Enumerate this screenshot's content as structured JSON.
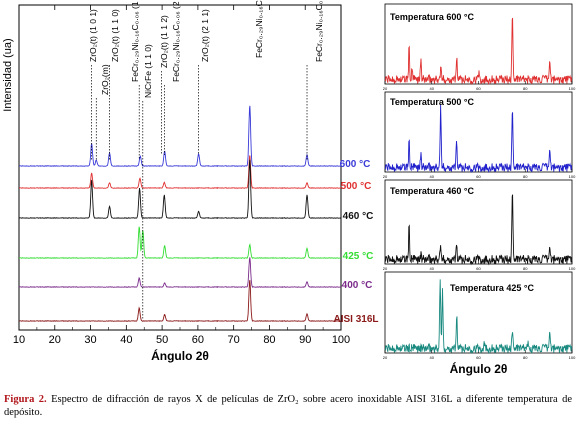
{
  "caption": {
    "label": "Figura 2.",
    "text": "Espectro de difracción de rayos X de películas de ZrO₂ sobre acero inoxidable AISI 316L a diferente temperatura de depósito."
  },
  "chart_data": [
    {
      "id": "main",
      "type": "line",
      "xlabel": "Ángulo 2θ",
      "ylabel": "Intensidad (ua)",
      "xlim": [
        10,
        100
      ],
      "xticks": [
        10,
        20,
        30,
        40,
        50,
        60,
        70,
        80,
        90,
        100
      ],
      "grid": false,
      "series": [
        {
          "name": "600 °C",
          "color": "#3a3ad8",
          "peaks": [
            [
              30.3,
              4.5
            ],
            [
              31.6,
              1.2
            ],
            [
              35.3,
              2.6
            ],
            [
              43.9,
              2.0
            ],
            [
              50.7,
              3.0
            ],
            [
              60.2,
              2.4
            ],
            [
              74.5,
              12.2
            ],
            [
              90.5,
              2.2
            ]
          ]
        },
        {
          "name": "500 °C",
          "color": "#e03030",
          "peaks": [
            [
              30.3,
              3.0
            ],
            [
              35.3,
              1.0
            ],
            [
              43.8,
              2.0
            ],
            [
              50.6,
              1.1
            ],
            [
              74.5,
              6.6
            ],
            [
              90.5,
              1.0
            ]
          ]
        },
        {
          "name": "460 °C",
          "color": "#111111",
          "peaks": [
            [
              30.3,
              7.6
            ],
            [
              35.3,
              2.3
            ],
            [
              43.7,
              6.0
            ],
            [
              50.6,
              4.6
            ],
            [
              60.2,
              1.3
            ],
            [
              74.5,
              11.8
            ],
            [
              90.5,
              4.6
            ]
          ]
        },
        {
          "name": "425 °C",
          "color": "#33dd33",
          "peaks": [
            [
              43.6,
              6.3
            ],
            [
              44.6,
              5.6
            ],
            [
              50.7,
              2.5
            ],
            [
              74.5,
              2.7
            ],
            [
              90.5,
              1.9
            ]
          ]
        },
        {
          "name": "400 °C",
          "color": "#7a2b8a",
          "peaks": [
            [
              43.6,
              1.8
            ],
            [
              50.7,
              0.8
            ],
            [
              74.5,
              6.0
            ],
            [
              90.5,
              1.0
            ]
          ]
        },
        {
          "name": "AISI 316L",
          "color": "#8b1a1a",
          "peaks": [
            [
              43.6,
              2.6
            ],
            [
              50.7,
              1.3
            ],
            [
              74.5,
              8.3
            ],
            [
              90.5,
              1.4
            ]
          ]
        }
      ],
      "annotations": [
        {
          "text": "ZrO₂(t) (1 0 1)",
          "x": 30.3
        },
        {
          "text": "ZrO₂(m)",
          "x": 31.6
        },
        {
          "text": "ZrO₂(t) (1 1 0)",
          "x": 35.3
        },
        {
          "text": "FeCr₀.₂₉Ni₀.₁₆C₀.₀₆ (1 1 1)",
          "x": 43.6
        },
        {
          "text": "NiCrFe (1 1 0)",
          "x": 44.6
        },
        {
          "text": "ZrO₂(t) (1 1 2)",
          "x": 49.8
        },
        {
          "text": "FeCr₀.₂₉Ni₀.₁₆C₀.₀₆ (2 0 0)",
          "x": 50.7
        },
        {
          "text": "ZrO₂(t) (2 1 1)",
          "x": 60.2
        },
        {
          "text": "FeCr₀.₂₉Ni₀.₁₆C₀.₀₆ (2 2 0)",
          "x": 74.5
        },
        {
          "text": "FeCr₀.₂₉Ni₀.₁₆C₀.₀₆ (3 1 1)",
          "x": 90.5
        }
      ]
    },
    {
      "id": "inset-600",
      "type": "line",
      "title": "Temperatura 600 °C",
      "color": "#e03030",
      "xlim": [
        20,
        100
      ],
      "xticks": [
        20,
        40,
        60,
        80,
        100
      ],
      "peaks": [
        [
          30.3,
          0.45
        ],
        [
          31.6,
          0.14
        ],
        [
          35.3,
          0.27
        ],
        [
          43.9,
          0.16
        ],
        [
          50.7,
          0.3
        ],
        [
          60.2,
          0.11
        ],
        [
          74.5,
          1.0
        ],
        [
          90.5,
          0.27
        ]
      ]
    },
    {
      "id": "inset-500",
      "type": "line",
      "title": "Temperatura 500 °C",
      "color": "#2222cc",
      "xlim": [
        20,
        100
      ],
      "xticks": [
        20,
        40,
        60,
        80,
        100
      ],
      "peaks": [
        [
          30.3,
          0.36
        ],
        [
          35.3,
          0.18
        ],
        [
          43.8,
          0.86
        ],
        [
          50.6,
          0.38
        ],
        [
          74.5,
          0.9
        ],
        [
          90.5,
          0.26
        ]
      ]
    },
    {
      "id": "inset-460",
      "type": "line",
      "title": "Temperatura 460 °C",
      "color": "#111111",
      "xlim": [
        20,
        100
      ],
      "xticks": [
        20,
        40,
        60,
        80,
        100
      ],
      "peaks": [
        [
          30.3,
          0.44
        ],
        [
          35.3,
          0.06
        ],
        [
          43.7,
          0.18
        ],
        [
          50.6,
          0.2
        ],
        [
          60.2,
          0.03
        ],
        [
          74.5,
          1.0
        ],
        [
          90.5,
          0.17
        ]
      ]
    },
    {
      "id": "inset-425",
      "type": "line",
      "title": "Temperatura 425 °C",
      "color": "#1a8a80",
      "xlabel": "Ángulo 2θ",
      "xlim": [
        20,
        100
      ],
      "xticks": [
        20,
        40,
        60,
        80,
        100
      ],
      "peaks": [
        [
          43.6,
          1.0
        ],
        [
          44.6,
          0.82
        ],
        [
          50.7,
          0.46
        ],
        [
          62.5,
          0.1
        ],
        [
          74.5,
          0.28
        ],
        [
          81.0,
          0.08
        ],
        [
          90.5,
          0.24
        ]
      ]
    }
  ]
}
